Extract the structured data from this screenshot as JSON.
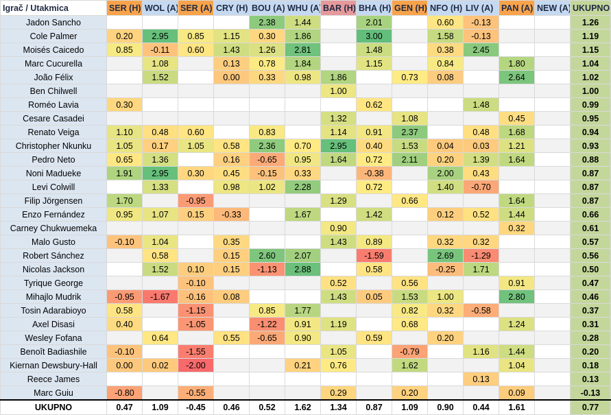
{
  "header": {
    "corner": "Igrač / Utakmica",
    "columns": [
      "SER (H)",
      "WOL (A)",
      "SER (A)",
      "CRY (H)",
      "BOU (A)",
      "WHU (A)",
      "BAR (H)",
      "BHA (H)",
      "GEN (H)",
      "NFO (H)",
      "LIV (A)",
      "PAN (A)",
      "NEW (A)",
      "UKUPNO"
    ],
    "column_colors": [
      "#f8a34b",
      "#c5d9f1",
      "#f8a34b",
      "#c5d9f1",
      "#c5d9f1",
      "#c5d9f1",
      "#e6999b",
      "#c5d9f1",
      "#f8a34b",
      "#c5d9f1",
      "#c5d9f1",
      "#f8a34b",
      "#c5d9f1",
      "#c4d79b"
    ]
  },
  "rows": [
    {
      "name": "Jadon Sancho",
      "cells": [
        null,
        null,
        null,
        null,
        "2.38",
        "1.44",
        null,
        "2.01",
        null,
        "0.60",
        "-0.13",
        null,
        null,
        "1.26"
      ]
    },
    {
      "name": "Cole Palmer",
      "cells": [
        "0.20",
        "2.95",
        "0.85",
        "1.15",
        "0.30",
        "1.86",
        null,
        "3.00",
        null,
        "1.58",
        "-0.13",
        null,
        null,
        "1.19"
      ]
    },
    {
      "name": "Moisés Caicedo",
      "cells": [
        "0.85",
        "-0.11",
        "0.60",
        "1.43",
        "1.26",
        "2.81",
        null,
        "1.48",
        null,
        "0.38",
        "2.45",
        null,
        null,
        "1.15"
      ]
    },
    {
      "name": "Marc Cucurella",
      "cells": [
        null,
        "1.08",
        null,
        "0.13",
        "0.78",
        "1.84",
        null,
        "1.15",
        null,
        "0.84",
        null,
        "1.80",
        null,
        "1.04"
      ]
    },
    {
      "name": "João Félix",
      "cells": [
        null,
        "1.52",
        null,
        "0.00",
        "0.33",
        "0.98",
        "1.86",
        null,
        "0.73",
        "0.08",
        null,
        "2.64",
        null,
        "1.02"
      ]
    },
    {
      "name": "Ben Chilwell",
      "cells": [
        null,
        null,
        null,
        null,
        null,
        null,
        "1.00",
        null,
        null,
        null,
        null,
        null,
        null,
        "1.00"
      ]
    },
    {
      "name": "Roméo Lavia",
      "cells": [
        "0.30",
        null,
        null,
        null,
        null,
        null,
        null,
        "0.62",
        null,
        null,
        "1.48",
        null,
        null,
        "0.99"
      ]
    },
    {
      "name": "Cesare Casadei",
      "cells": [
        null,
        null,
        null,
        null,
        null,
        null,
        "1.32",
        null,
        "1.08",
        null,
        null,
        "0.45",
        null,
        "0.95"
      ]
    },
    {
      "name": "Renato Veiga",
      "cells": [
        "1.10",
        "0.48",
        "0.60",
        null,
        "0.83",
        null,
        "1.14",
        "0.91",
        "2.37",
        null,
        "0.48",
        "1.68",
        null,
        "0.94"
      ]
    },
    {
      "name": "Christopher Nkunku",
      "cells": [
        "1.05",
        "0.17",
        "1.05",
        "0.58",
        "2.36",
        "0.70",
        "2.95",
        "0.40",
        "1.53",
        "0.04",
        "0.03",
        "1.21",
        null,
        "0.93"
      ]
    },
    {
      "name": "Pedro Neto",
      "cells": [
        "0.65",
        "1.36",
        null,
        "0.16",
        "-0.65",
        "0.95",
        "1.64",
        "0.72",
        "2.11",
        "0.20",
        "1.39",
        "1.64",
        null,
        "0.88"
      ]
    },
    {
      "name": "Noni Madueke",
      "cells": [
        "1.91",
        "2.95",
        "0.30",
        "0.45",
        "-0.15",
        "0.33",
        null,
        "-0.38",
        null,
        "2.00",
        "0.43",
        null,
        null,
        "0.87"
      ]
    },
    {
      "name": "Levi Colwill",
      "cells": [
        null,
        "1.33",
        null,
        "0.98",
        "1.02",
        "2.28",
        null,
        "0.72",
        null,
        "1.40",
        "-0.70",
        null,
        null,
        "0.87"
      ]
    },
    {
      "name": "Filip Jörgensen",
      "cells": [
        "1.70",
        null,
        "-0.95",
        null,
        null,
        null,
        "1.29",
        null,
        "0.66",
        null,
        null,
        "1.64",
        null,
        "0.87"
      ]
    },
    {
      "name": "Enzo Fernández",
      "cells": [
        "0.95",
        "1.07",
        "0.15",
        "-0.33",
        null,
        "1.67",
        null,
        "1.42",
        null,
        "0.12",
        "0.52",
        "1.44",
        null,
        "0.66"
      ]
    },
    {
      "name": "Carney Chukwuemeka",
      "cells": [
        null,
        null,
        null,
        null,
        null,
        null,
        "0.90",
        null,
        null,
        null,
        null,
        "0.32",
        null,
        "0.61"
      ]
    },
    {
      "name": "Malo Gusto",
      "cells": [
        "-0.10",
        "1.04",
        null,
        "0.35",
        null,
        null,
        "1.43",
        "0.89",
        null,
        "0.32",
        "0.32",
        null,
        null,
        "0.57"
      ]
    },
    {
      "name": "Robert Sánchez",
      "cells": [
        null,
        "0.58",
        null,
        "0.15",
        "2.60",
        "2.07",
        null,
        "-1.59",
        null,
        "2.69",
        "-1.29",
        null,
        null,
        "0.56"
      ]
    },
    {
      "name": "Nicolas Jackson",
      "cells": [
        null,
        "1.52",
        "0.10",
        "0.15",
        "-1.13",
        "2.88",
        null,
        "0.58",
        null,
        "-0.25",
        "1.71",
        null,
        null,
        "0.50"
      ]
    },
    {
      "name": "Tyrique George",
      "cells": [
        null,
        null,
        "-0.10",
        null,
        null,
        null,
        "0.52",
        null,
        "0.56",
        null,
        null,
        "0.91",
        null,
        "0.47"
      ]
    },
    {
      "name": "Mihajlo Mudrik",
      "cells": [
        "-0.95",
        "-1.67",
        "-0.16",
        "0.08",
        null,
        null,
        "1.43",
        "0.05",
        "1.53",
        "1.00",
        null,
        "2.80",
        null,
        "0.46"
      ]
    },
    {
      "name": "Tosin Adarabioyo",
      "cells": [
        "0.58",
        null,
        "-1.15",
        null,
        "0.85",
        "1.77",
        null,
        null,
        "0.82",
        "0.32",
        "-0.58",
        null,
        null,
        "0.37"
      ]
    },
    {
      "name": "Axel Disasi",
      "cells": [
        "0.40",
        null,
        "-1.05",
        null,
        "-1.22",
        "0.91",
        "1.19",
        null,
        "0.68",
        null,
        null,
        "1.24",
        null,
        "0.31"
      ]
    },
    {
      "name": "Wesley Fofana",
      "cells": [
        null,
        "0.64",
        null,
        "0.55",
        "-0.65",
        "0.90",
        null,
        "0.59",
        null,
        "0.20",
        null,
        null,
        null,
        "0.28"
      ]
    },
    {
      "name": "Benoît Badiashile",
      "cells": [
        "-0.10",
        null,
        "-1.55",
        null,
        null,
        null,
        "1.05",
        null,
        "-0.79",
        null,
        "1.16",
        "1.44",
        null,
        "0.20"
      ]
    },
    {
      "name": "Kiernan Dewsbury-Hall",
      "cells": [
        "0.00",
        "0.02",
        "-2.00",
        null,
        null,
        "0.21",
        "0.76",
        null,
        "1.62",
        null,
        null,
        "1.04",
        null,
        "0.18"
      ]
    },
    {
      "name": "Reece James",
      "cells": [
        null,
        null,
        null,
        null,
        null,
        null,
        null,
        null,
        null,
        null,
        "0.13",
        null,
        null,
        "0.13"
      ]
    },
    {
      "name": "Marc Guiu",
      "cells": [
        "-0.80",
        null,
        "-0.55",
        null,
        null,
        null,
        "0.29",
        null,
        "0.20",
        null,
        null,
        "0.09",
        null,
        "-0.13"
      ]
    }
  ],
  "total_row": {
    "name": "UKUPNO",
    "cells": [
      "0.47",
      "1.09",
      "-0.45",
      "0.46",
      "0.52",
      "1.62",
      "1.34",
      "0.87",
      "1.09",
      "0.90",
      "0.44",
      "1.61",
      null,
      "0.77"
    ]
  }
}
